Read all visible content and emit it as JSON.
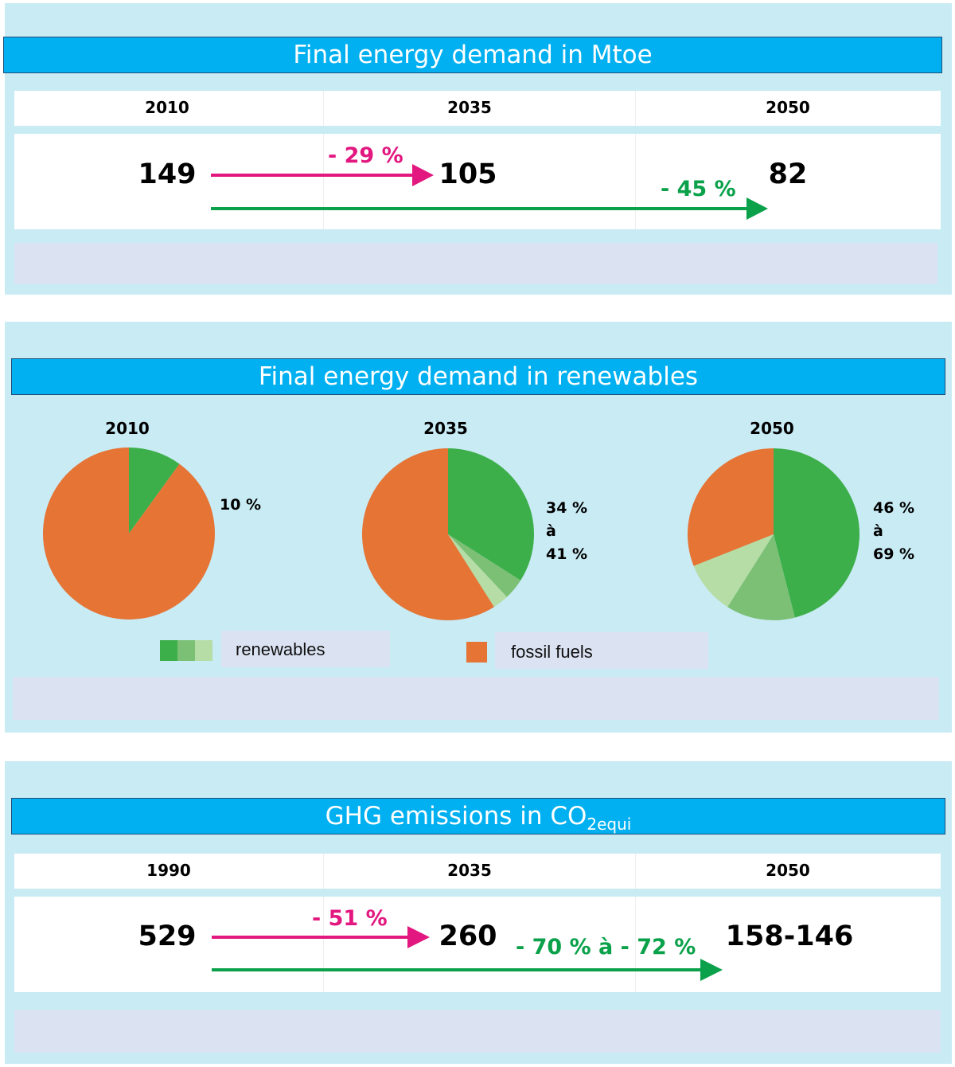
{
  "colors": {
    "banner": "#00b0f0",
    "panel": "#c8ebf4",
    "note": "#dbe3f2",
    "pink": "#e2177f",
    "green_arrow": "#0aa14a",
    "renewables": [
      "#3daf4a",
      "#7cc076",
      "#b6dda5"
    ],
    "fossil": "#e57435"
  },
  "demand": {
    "title": "Final energy demand in Mtoe",
    "years": [
      "2010",
      "2035",
      "2050"
    ],
    "values": [
      "149",
      "105",
      "82"
    ],
    "change_2035": "- 29 %",
    "change_2050": "- 45 %"
  },
  "renewables": {
    "title": "Final energy demand in renewables",
    "pies": [
      {
        "year": "2010",
        "label_lines": [
          "10 %"
        ]
      },
      {
        "year": "2035",
        "label_lines": [
          "34 %",
          "à",
          "41 %"
        ]
      },
      {
        "year": "2050",
        "label_lines": [
          "46 %",
          "à",
          "69 %"
        ]
      }
    ],
    "legend": {
      "renewables": "renewables",
      "fossil": "fossil fuels"
    }
  },
  "ghg": {
    "title_main": "GHG emissions in CO",
    "title_sub": "2equi",
    "years": [
      "1990",
      "2035",
      "2050"
    ],
    "values": [
      "529",
      "260",
      "158-146"
    ],
    "change_2035": "- 51 %",
    "change_2050": "- 70 % à - 72 %"
  },
  "chart_data": [
    {
      "type": "pie",
      "title": "2010",
      "categories": [
        "renewables",
        "fossil fuels"
      ],
      "values": [
        10,
        90
      ]
    },
    {
      "type": "pie",
      "title": "2035",
      "categories": [
        "renewables",
        "renewables",
        "renewables",
        "fossil fuels"
      ],
      "values": [
        34,
        4,
        3,
        59
      ]
    },
    {
      "type": "pie",
      "title": "2050",
      "categories": [
        "renewables",
        "renewables",
        "renewables",
        "fossil fuels"
      ],
      "values": [
        46,
        13,
        10,
        31
      ]
    }
  ]
}
